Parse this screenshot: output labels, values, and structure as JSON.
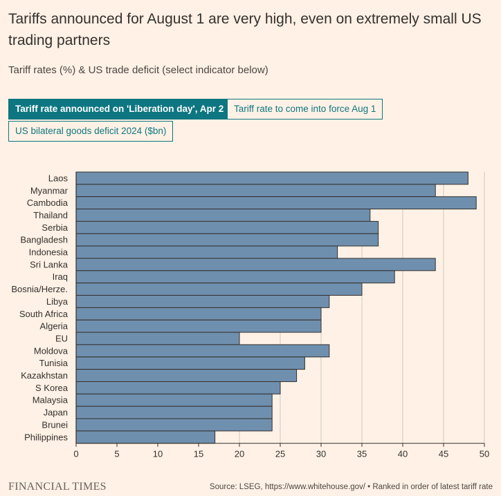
{
  "title": "Tariffs announced for August 1 are very high, even on extremely small US trading partners",
  "subtitle": "Tariff rates (%) & US trade deficit (select indicator below)",
  "buttons": [
    {
      "label": "Tariff rate announced on 'Liberation day', Apr 2",
      "active": true
    },
    {
      "label": "Tariff rate to come into force Aug 1",
      "active": false
    },
    {
      "label": "US bilateral goods deficit 2024 ($bn)",
      "active": false
    }
  ],
  "chart_data": {
    "type": "bar",
    "orientation": "horizontal",
    "categories": [
      "Laos",
      "Myanmar",
      "Cambodia",
      "Thailand",
      "Serbia",
      "Bangladesh",
      "Indonesia",
      "Sri Lanka",
      "Iraq",
      "Bosnia/Herze.",
      "Libya",
      "South Africa",
      "Algeria",
      "EU",
      "Moldova",
      "Tunisia",
      "Kazakhstan",
      "S Korea",
      "Malaysia",
      "Japan",
      "Brunei",
      "Philippines"
    ],
    "values": [
      48,
      44,
      49,
      36,
      37,
      37,
      32,
      44,
      39,
      35,
      31,
      30,
      30,
      20,
      31,
      28,
      27,
      25,
      24,
      24,
      24,
      17
    ],
    "xlim": [
      0,
      50
    ],
    "xticks": [
      "0",
      "5",
      "10",
      "15",
      "20",
      "25",
      "30",
      "35",
      "40",
      "45",
      "50"
    ],
    "grid": true,
    "bar_color": "#6f8fae",
    "bar_edge_color": "#33302e",
    "grid_color": "#cec6b9"
  },
  "footer": {
    "logo": "FINANCIAL TIMES",
    "source": "Source: LSEG, https://www.whitehouse.gov/ • Ranked in order of latest tariff rate"
  }
}
